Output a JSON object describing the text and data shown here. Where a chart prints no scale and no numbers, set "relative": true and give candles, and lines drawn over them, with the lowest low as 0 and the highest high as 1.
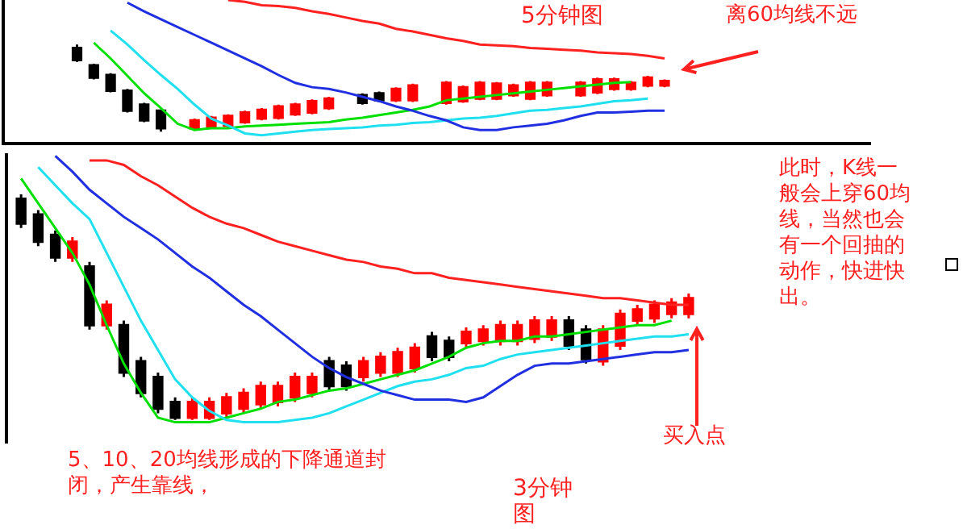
{
  "chart_data": [
    {
      "type": "candlestick",
      "relative": true,
      "title": "5分钟图",
      "annotations": [
        "离60均线不远"
      ],
      "categories": [
        null,
        null,
        null,
        null,
        null,
        null,
        null,
        null,
        null,
        null,
        null,
        null,
        null,
        null,
        null,
        null,
        null,
        null,
        null,
        null,
        null,
        null,
        null,
        null,
        null,
        null,
        null,
        null,
        null,
        null,
        null,
        null,
        null,
        null,
        null,
        null
      ],
      "ohlc": [
        [
          0.96,
          1,
          0.8,
          0.82
        ],
        [
          0.76,
          0.78,
          0.6,
          0.62
        ],
        [
          0.65,
          0.67,
          0.45,
          0.47
        ],
        [
          0.47,
          0.49,
          0.22,
          0.24
        ],
        [
          0.31,
          0.33,
          0.11,
          0.13
        ],
        [
          0.24,
          0.25,
          0,
          0.04
        ],
        null,
        [
          0.04,
          0.15,
          0.02,
          0.13
        ],
        [
          0.05,
          0.18,
          0.03,
          0.16
        ],
        [
          0.07,
          0.2,
          0.05,
          0.18
        ],
        [
          0.11,
          0.24,
          0.09,
          0.22
        ],
        [
          0.15,
          0.27,
          0.13,
          0.25
        ],
        [
          0.16,
          0.31,
          0.14,
          0.29
        ],
        [
          0.2,
          0.33,
          0.18,
          0.31
        ],
        [
          0.22,
          0.37,
          0.2,
          0.35
        ],
        [
          0.27,
          0.4,
          0.25,
          0.38
        ],
        null,
        [
          0.42,
          0.44,
          0.31,
          0.33
        ],
        [
          0.44,
          0.46,
          0.34,
          0.36
        ],
        [
          0.36,
          0.51,
          0.34,
          0.49
        ],
        [
          0.36,
          0.55,
          0.34,
          0.53
        ],
        null,
        [
          0.33,
          0.58,
          0.31,
          0.56
        ],
        [
          0.35,
          0.53,
          0.33,
          0.51
        ],
        [
          0.38,
          0.58,
          0.36,
          0.56
        ],
        [
          0.38,
          0.57,
          0.36,
          0.55
        ],
        [
          0.42,
          0.55,
          0.4,
          0.53
        ],
        [
          0.38,
          0.58,
          0.36,
          0.56
        ],
        [
          0.42,
          0.58,
          0.4,
          0.56
        ],
        null,
        [
          0.42,
          0.58,
          0.4,
          0.56
        ],
        [
          0.45,
          0.62,
          0.43,
          0.6
        ],
        [
          0.49,
          0.62,
          0.47,
          0.6
        ],
        [
          0.49,
          0.58,
          0.47,
          0.56
        ],
        [
          0.53,
          0.64,
          0.51,
          0.62
        ],
        [
          0.53,
          0.6,
          0.51,
          0.58
        ]
      ],
      "colors": [
        "#000000",
        "#000000",
        "#000000",
        "#000000",
        "#000000",
        "#000000",
        null,
        "#ff0000",
        "#ff0000",
        "#ff0000",
        "#ff0000",
        "#ff0000",
        "#ff0000",
        "#ff0000",
        "#ff0000",
        "#ff0000",
        null,
        "#000000",
        "#000000",
        "#ff0000",
        "#ff0000",
        null,
        "#ff0000",
        "#ff0000",
        "#ff0000",
        "#ff0000",
        "#ff0000",
        "#ff0000",
        "#ff0000",
        null,
        "#ff0000",
        "#ff0000",
        "#ff0000",
        "#ff0000",
        "#ff0000",
        "#ff0000"
      ],
      "series": [
        {
          "type": "line",
          "color": "#00e000",
          "values": [
            null,
            1.02,
            0.84,
            0.64,
            0.44,
            0.27,
            0.09,
            0.02,
            0.04,
            0.04,
            0.06,
            0.07,
            0.08,
            0.09,
            0.1,
            0.11,
            0.14,
            0.16,
            0.19,
            0.22,
            0.25,
            0.29,
            0.36,
            0.38,
            0.4,
            0.42,
            0.44,
            0.46,
            0.48,
            0.5,
            0.52,
            0.54,
            0.56,
            0.57,
            null,
            null
          ]
        },
        {
          "type": "line",
          "color": "#20e0f0",
          "values": [
            null,
            null,
            1.16,
            1.0,
            0.82,
            0.65,
            0.49,
            0.31,
            0.15,
            0.07,
            -0.02,
            -0.04,
            -0.02,
            0,
            0.02,
            0.03,
            0.04,
            0.05,
            0.07,
            0.08,
            0.1,
            0.11,
            0.13,
            0.15,
            0.16,
            0.18,
            0.21,
            0.24,
            0.25,
            0.27,
            0.29,
            0.32,
            0.35,
            0.36,
            0.38,
            null
          ]
        },
        {
          "type": "line",
          "color": "#2030e0",
          "values": [
            null,
            null,
            null,
            1.48,
            1.38,
            1.29,
            1.2,
            1.11,
            1.02,
            0.93,
            0.84,
            0.75,
            0.65,
            0.56,
            0.51,
            0.49,
            0.45,
            0.4,
            0.35,
            0.29,
            0.24,
            0.18,
            0.13,
            0.05,
            0.02,
            0.02,
            0.05,
            0.07,
            0.09,
            0.13,
            0.18,
            0.22,
            0.22,
            0.23,
            0.24,
            0.24
          ]
        },
        {
          "type": "line",
          "color": "#ff2020",
          "values": [
            null,
            null,
            null,
            null,
            null,
            null,
            null,
            null,
            null,
            1.51,
            1.49,
            1.45,
            1.44,
            1.42,
            1.38,
            1.35,
            1.31,
            1.27,
            1.24,
            1.18,
            1.15,
            1.11,
            1.07,
            1.04,
            1.0,
            0.99,
            0.98,
            0.96,
            0.95,
            0.94,
            0.93,
            0.91,
            0.9,
            0.89,
            0.87,
            0.84
          ]
        }
      ]
    },
    {
      "type": "candlestick",
      "relative": true,
      "title": "3分钟图",
      "annotations": [
        "此时，K线一般会上穿60均线，当然也会有一个回抽的动作，快进快出。",
        "买入点",
        "5、10、20均线形成的下降通道封闭，产生靠线，"
      ],
      "categories": [
        null,
        null,
        null,
        null,
        null,
        null,
        null,
        null,
        null,
        null,
        null,
        null,
        null,
        null,
        null,
        null,
        null,
        null,
        null,
        null,
        null,
        null,
        null,
        null,
        null,
        null,
        null,
        null,
        null,
        null,
        null,
        null,
        null,
        null,
        null,
        null,
        null,
        null,
        null,
        null
      ],
      "ohlc": [
        [
          0.98,
          1,
          0.85,
          0.87
        ],
        [
          0.91,
          0.93,
          0.77,
          0.79
        ],
        [
          0.82,
          0.84,
          0.7,
          0.72
        ],
        [
          0.72,
          0.81,
          0.7,
          0.79
        ],
        [
          0.68,
          0.7,
          0.4,
          0.42
        ],
        [
          0.42,
          0.53,
          0.4,
          0.51
        ],
        [
          0.42,
          0.44,
          0.19,
          0.21
        ],
        [
          0.26,
          0.28,
          0.1,
          0.12
        ],
        [
          0.19,
          0.21,
          0.03,
          0.05
        ],
        [
          0.08,
          0.1,
          0,
          0.01
        ],
        [
          0.01,
          0.1,
          0,
          0.08
        ],
        [
          0.01,
          0.1,
          0,
          0.08
        ],
        [
          0.03,
          0.12,
          0.01,
          0.1
        ],
        [
          0.05,
          0.14,
          0.03,
          0.12
        ],
        [
          0.07,
          0.17,
          0.05,
          0.15
        ],
        [
          0.08,
          0.17,
          0.06,
          0.15
        ],
        [
          0.1,
          0.21,
          0.08,
          0.19
        ],
        [
          0.12,
          0.21,
          0.1,
          0.19
        ],
        [
          0.26,
          0.28,
          0.13,
          0.15
        ],
        [
          0.24,
          0.26,
          0.13,
          0.15
        ],
        [
          0.19,
          0.28,
          0.17,
          0.26
        ],
        [
          0.21,
          0.3,
          0.19,
          0.28
        ],
        [
          0.21,
          0.32,
          0.19,
          0.3
        ],
        [
          0.23,
          0.34,
          0.21,
          0.32
        ],
        [
          0.37,
          0.39,
          0.26,
          0.28
        ],
        [
          0.35,
          0.37,
          0.26,
          0.28
        ],
        [
          0.34,
          0.41,
          0.32,
          0.39
        ],
        [
          0.35,
          0.42,
          0.33,
          0.4
        ],
        [
          0.35,
          0.44,
          0.33,
          0.42
        ],
        [
          0.35,
          0.44,
          0.33,
          0.42
        ],
        [
          0.36,
          0.46,
          0.34,
          0.44
        ],
        [
          0.37,
          0.46,
          0.35,
          0.44
        ],
        [
          0.44,
          0.46,
          0.31,
          0.33
        ],
        [
          0.4,
          0.42,
          0.25,
          0.27
        ],
        [
          0.26,
          0.42,
          0.24,
          0.4
        ],
        [
          0.33,
          0.49,
          0.31,
          0.47
        ],
        [
          0.44,
          0.51,
          0.42,
          0.49
        ],
        [
          0.45,
          0.53,
          0.43,
          0.51
        ],
        [
          0.47,
          0.54,
          0.45,
          0.52
        ],
        [
          0.47,
          0.56,
          0.45,
          0.54
        ]
      ],
      "colors": [
        "#000000",
        "#000000",
        "#000000",
        "#ff0000",
        "#000000",
        "#ff0000",
        "#000000",
        "#000000",
        "#000000",
        "#000000",
        "#ff0000",
        "#ff0000",
        "#ff0000",
        "#ff0000",
        "#ff0000",
        "#ff0000",
        "#ff0000",
        "#ff0000",
        "#000000",
        "#000000",
        "#ff0000",
        "#ff0000",
        "#ff0000",
        "#ff0000",
        "#000000",
        "#000000",
        "#ff0000",
        "#ff0000",
        "#ff0000",
        "#ff0000",
        "#ff0000",
        "#ff0000",
        "#000000",
        "#000000",
        "#ff0000",
        "#ff0000",
        "#ff0000",
        "#ff0000",
        "#ff0000",
        "#ff0000"
      ],
      "series": [
        {
          "type": "line",
          "color": "#00e000",
          "values": [
            1.07,
            0.96,
            0.85,
            0.74,
            0.6,
            0.42,
            0.25,
            0.12,
            0.01,
            -0.01,
            -0.01,
            -0.01,
            0.01,
            0.03,
            0.05,
            0.08,
            0.09,
            0.11,
            0.13,
            0.14,
            0.16,
            0.18,
            0.2,
            0.22,
            0.25,
            0.28,
            0.32,
            0.34,
            0.35,
            0.35,
            0.37,
            0.37,
            0.38,
            0.39,
            0.4,
            0.41,
            0.42,
            0.42,
            0.44,
            null
          ]
        },
        {
          "type": "line",
          "color": "#20e0f0",
          "values": [
            null,
            1.12,
            1.04,
            0.96,
            0.89,
            0.74,
            0.59,
            0.44,
            0.31,
            0.18,
            0.1,
            0.04,
            0,
            -0.01,
            -0.01,
            -0.01,
            0,
            0.01,
            0.03,
            0.06,
            0.09,
            0.12,
            0.15,
            0.17,
            0.18,
            0.2,
            0.23,
            0.24,
            0.27,
            0.29,
            0.3,
            0.31,
            0.32,
            0.33,
            0.34,
            0.35,
            0.36,
            0.37,
            0.37,
            0.38
          ]
        },
        {
          "type": "line",
          "color": "#2030e0",
          "values": [
            null,
            null,
            1.17,
            1.1,
            1.02,
            0.96,
            0.9,
            0.85,
            0.8,
            0.74,
            0.68,
            0.63,
            0.57,
            0.51,
            0.46,
            0.4,
            0.34,
            0.28,
            0.23,
            0.19,
            0.16,
            0.13,
            0.11,
            0.09,
            0.09,
            0.09,
            0.08,
            0.1,
            0.15,
            0.2,
            0.24,
            0.25,
            0.25,
            0.26,
            0.27,
            0.28,
            0.29,
            0.3,
            0.3,
            0.31
          ]
        },
        {
          "type": "line",
          "color": "#ff2020",
          "values": [
            null,
            null,
            null,
            null,
            1.15,
            1.15,
            1.13,
            1.08,
            1.04,
            0.99,
            0.94,
            0.9,
            0.87,
            0.85,
            0.82,
            0.79,
            0.77,
            0.75,
            0.73,
            0.71,
            0.7,
            0.68,
            0.67,
            0.65,
            0.65,
            0.63,
            0.62,
            0.61,
            0.6,
            0.59,
            0.58,
            0.57,
            0.56,
            0.55,
            0.54,
            0.54,
            0.53,
            0.52,
            0.51,
            0.51
          ]
        }
      ]
    }
  ]
}
